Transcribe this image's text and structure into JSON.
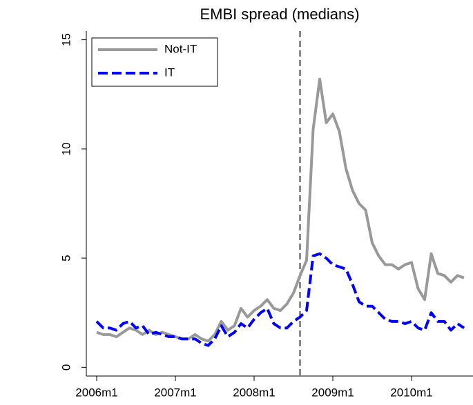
{
  "chart_data": {
    "type": "line",
    "title": "EMBI spread (medians)",
    "categories": [
      "2006m1",
      null,
      null,
      null,
      null,
      null,
      null,
      null,
      null,
      null,
      null,
      null,
      "2007m1",
      null,
      null,
      null,
      null,
      null,
      null,
      null,
      null,
      null,
      null,
      null,
      "2008m1",
      null,
      null,
      null,
      null,
      null,
      null,
      null,
      null,
      null,
      null,
      null,
      "2009m1",
      null,
      null,
      null,
      null,
      null,
      null,
      null,
      null,
      null,
      null,
      null,
      "2010m1",
      null,
      null,
      null,
      null,
      null,
      null,
      null,
      null
    ],
    "series": [
      {
        "name": "Not-IT",
        "color": "#999999",
        "style": "solid",
        "values": [
          1.6,
          1.5,
          1.5,
          1.4,
          1.6,
          1.8,
          1.7,
          1.5,
          1.7,
          1.5,
          1.6,
          1.5,
          1.4,
          1.3,
          1.3,
          1.5,
          1.3,
          1.2,
          1.5,
          2.1,
          1.7,
          1.9,
          2.7,
          2.3,
          2.6,
          2.8,
          3.1,
          2.7,
          2.6,
          2.9,
          3.4,
          4.2,
          4.9,
          10.9,
          13.2,
          11.2,
          11.6,
          10.8,
          9.1,
          8.1,
          7.5,
          7.2,
          5.7,
          5.1,
          4.7,
          4.7,
          4.5,
          4.7,
          4.8,
          3.6,
          3.1,
          5.2,
          4.3,
          4.2,
          3.9,
          4.2,
          4.1
        ]
      },
      {
        "name": "IT",
        "color": "#0000ff",
        "style": "dashed",
        "values": [
          2.1,
          1.8,
          1.8,
          1.7,
          2.0,
          2.1,
          1.8,
          1.9,
          1.5,
          1.6,
          1.5,
          1.4,
          1.4,
          1.3,
          1.3,
          1.3,
          1.1,
          1.0,
          1.3,
          1.9,
          1.4,
          1.6,
          2.0,
          1.8,
          2.2,
          2.5,
          2.7,
          2.0,
          1.8,
          1.8,
          2.1,
          2.3,
          2.6,
          5.1,
          5.2,
          5.0,
          4.7,
          4.6,
          4.5,
          3.8,
          3.0,
          2.8,
          2.8,
          2.5,
          2.2,
          2.1,
          2.1,
          2.0,
          2.1,
          1.8,
          1.7,
          2.5,
          2.1,
          2.1,
          1.7,
          2.0,
          1.8
        ]
      }
    ],
    "vline_x": 31,
    "ylim": [
      -0.4,
      15.4
    ],
    "yticks": [
      0,
      5,
      10,
      15
    ],
    "legend": "top-left"
  }
}
